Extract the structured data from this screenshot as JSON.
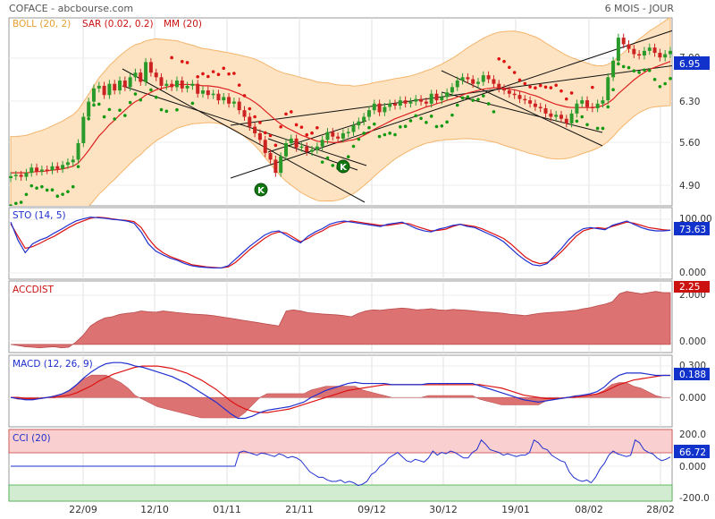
{
  "header": {
    "title": "COFACE - abcbourse.com",
    "period": "6 MOIS - JOUR"
  },
  "colors": {
    "up": "#2a9a2a",
    "down": "#cc2222",
    "boll_fill": "#fde3c2",
    "boll_line": "#f4b46a",
    "ma": "#dd2222",
    "sar_up": "#119911",
    "sar_down": "#dd1111",
    "blue": "#1f2fcf",
    "red": "#dd1111",
    "accdist_fill": "#dc7272",
    "cci_top": "#f9cfcf",
    "cci_bottom": "#d2ecd2",
    "badge_blue": "#1133cc",
    "badge_red": "#cc1111"
  },
  "dates": [
    "22/09",
    "12/10",
    "01/11",
    "21/11",
    "09/12",
    "30/12",
    "19/01",
    "08/02",
    "28/02"
  ],
  "chart_data": [
    {
      "type": "candlestick",
      "name": "price",
      "legend": [
        {
          "label": "BOLL (20, 2)",
          "color": "#e8a030"
        },
        {
          "label": "SAR (0.02, 0.2)",
          "color": "#cc1111"
        },
        {
          "label": "MM (20)",
          "color": "#cc1111"
        }
      ],
      "yticks": [
        "7.00",
        "6.30",
        "5.60",
        "4.90"
      ],
      "ylim": [
        4.6,
        7.45
      ],
      "last_value": "6.95",
      "markers": [
        "K",
        "K"
      ],
      "close": [
        5.05,
        5.07,
        5.04,
        5.1,
        5.18,
        5.12,
        5.15,
        5.14,
        5.2,
        5.16,
        5.22,
        5.26,
        5.3,
        5.55,
        5.95,
        6.18,
        6.38,
        6.42,
        6.28,
        6.45,
        6.35,
        6.5,
        6.4,
        6.55,
        6.62,
        6.48,
        6.78,
        6.62,
        6.55,
        6.42,
        6.45,
        6.4,
        6.5,
        6.38,
        6.42,
        6.45,
        6.3,
        6.35,
        6.28,
        6.3,
        6.2,
        6.25,
        6.15,
        6.18,
        6.05,
        5.95,
        5.8,
        5.7,
        5.6,
        5.4,
        5.3,
        5.1,
        5.35,
        5.55,
        5.62,
        5.48,
        5.5,
        5.42,
        5.45,
        5.5,
        5.6,
        5.72,
        5.65,
        5.62,
        5.7,
        5.72,
        5.82,
        5.88,
        5.95,
        6.05,
        6.15,
        6.02,
        6.1,
        6.15,
        6.12,
        6.2,
        6.15,
        6.18,
        6.22,
        6.18,
        6.15,
        6.3,
        6.2,
        6.25,
        6.32,
        6.4,
        6.5,
        6.55,
        6.52,
        6.45,
        6.48,
        6.58,
        6.52,
        6.45,
        6.38,
        6.35,
        6.3,
        6.28,
        6.22,
        6.2,
        6.15,
        6.1,
        6.08,
        6.0,
        5.95,
        5.98,
        5.92,
        5.85,
        6.0,
        6.15,
        6.2,
        6.1,
        6.08,
        6.15,
        6.2,
        6.55,
        6.8,
        7.15,
        7.05,
        6.98,
        6.9,
        6.88,
        6.95,
        7.0,
        6.92,
        6.85,
        6.9,
        6.95
      ],
      "ma": [
        5.1,
        5.1,
        5.1,
        5.1,
        5.11,
        5.12,
        5.12,
        5.13,
        5.14,
        5.15,
        5.16,
        5.18,
        5.2,
        5.25,
        5.34,
        5.44,
        5.55,
        5.66,
        5.74,
        5.83,
        5.9,
        5.98,
        6.05,
        6.12,
        6.18,
        6.22,
        6.28,
        6.32,
        6.36,
        6.38,
        6.4,
        6.42,
        6.44,
        6.44,
        6.44,
        6.44,
        6.43,
        6.42,
        6.42,
        6.41,
        6.4,
        6.38,
        6.36,
        6.33,
        6.3,
        6.26,
        6.22,
        6.17,
        6.11,
        6.04,
        5.97,
        5.9,
        5.84,
        5.79,
        5.75,
        5.71,
        5.67,
        5.64,
        5.61,
        5.58,
        5.57,
        5.57,
        5.56,
        5.56,
        5.57,
        5.59,
        5.6,
        5.63,
        5.67,
        5.71,
        5.76,
        5.8,
        5.84,
        5.88,
        5.92,
        5.95,
        5.98,
        6.01,
        6.04,
        6.07,
        6.1,
        6.12,
        6.15,
        6.17,
        6.2,
        6.22,
        6.25,
        6.28,
        6.31,
        6.33,
        6.35,
        6.37,
        6.38,
        6.39,
        6.39,
        6.38,
        6.37,
        6.36,
        6.34,
        6.32,
        6.29,
        6.27,
        6.24,
        6.2,
        6.17,
        6.14,
        6.12,
        6.1,
        6.09,
        6.09,
        6.09,
        6.09,
        6.09,
        6.1,
        6.12,
        6.16,
        6.22,
        6.3,
        6.37,
        6.44,
        6.51,
        6.57,
        6.62,
        6.67,
        6.7,
        6.73,
        6.76,
        6.79
      ]
    },
    {
      "type": "line",
      "name": "STO (14, 5)",
      "yticks": [
        "100.00",
        "0.000"
      ],
      "ylim": [
        -10,
        108
      ],
      "last_value": "73.63",
      "series": [
        {
          "color": "#dd1111",
          "values": [
            85,
            62,
            40,
            43,
            49,
            56,
            62,
            70,
            78,
            85,
            90,
            95,
            97,
            96,
            94,
            92,
            91,
            89,
            78,
            58,
            42,
            32,
            25,
            20,
            15,
            10,
            8,
            6,
            5,
            4,
            6,
            14,
            26,
            38,
            48,
            58,
            66,
            70,
            68,
            60,
            52,
            58,
            66,
            72,
            80,
            84,
            88,
            90,
            88,
            86,
            84,
            82,
            82,
            84,
            86,
            85,
            80,
            76,
            72,
            73,
            75,
            80,
            84,
            82,
            80,
            76,
            70,
            64,
            58,
            48,
            36,
            24,
            16,
            12,
            14,
            22,
            34,
            48,
            62,
            72,
            76,
            78,
            76,
            80,
            84,
            88,
            86,
            82,
            78,
            76,
            74,
            73
          ]
        },
        {
          "color": "#1f2fcf",
          "values": [
            88,
            55,
            32,
            48,
            55,
            60,
            68,
            75,
            83,
            90,
            94,
            97,
            96,
            95,
            93,
            92,
            90,
            86,
            70,
            48,
            35,
            28,
            22,
            18,
            12,
            8,
            6,
            5,
            4,
            4,
            8,
            20,
            32,
            44,
            54,
            64,
            70,
            72,
            64,
            56,
            50,
            62,
            70,
            76,
            84,
            88,
            90,
            88,
            86,
            84,
            82,
            80,
            84,
            86,
            88,
            82,
            76,
            72,
            70,
            75,
            78,
            82,
            84,
            80,
            78,
            72,
            66,
            60,
            52,
            40,
            28,
            18,
            10,
            8,
            12,
            26,
            40,
            56,
            68,
            76,
            78,
            76,
            74,
            82,
            86,
            90,
            84,
            78,
            74,
            72,
            72,
            73
          ]
        }
      ]
    },
    {
      "type": "area",
      "name": "ACCDIST",
      "yticks": [
        "2.000",
        "0.000"
      ],
      "ylim": [
        -0.2,
        2.6
      ],
      "last_value": "2.25",
      "values": [
        0.0,
        -0.05,
        -0.1,
        -0.12,
        -0.15,
        -0.12,
        -0.1,
        -0.15,
        -0.12,
        0.1,
        0.4,
        0.8,
        1.0,
        1.15,
        1.2,
        1.3,
        1.35,
        1.38,
        1.45,
        1.42,
        1.4,
        1.45,
        1.42,
        1.38,
        1.35,
        1.32,
        1.3,
        1.28,
        1.25,
        1.2,
        1.15,
        1.1,
        1.05,
        1.0,
        0.95,
        0.9,
        0.85,
        0.8,
        1.45,
        1.5,
        1.45,
        1.38,
        1.35,
        1.32,
        1.3,
        1.28,
        1.25,
        1.2,
        1.35,
        1.45,
        1.5,
        1.48,
        1.52,
        1.55,
        1.58,
        1.55,
        1.5,
        1.52,
        1.55,
        1.5,
        1.48,
        1.52,
        1.5,
        1.48,
        1.45,
        1.42,
        1.4,
        1.38,
        1.35,
        1.3,
        1.28,
        1.25,
        1.3,
        1.35,
        1.38,
        1.4,
        1.42,
        1.45,
        1.48,
        1.55,
        1.6,
        1.68,
        1.75,
        1.85,
        2.2,
        2.3,
        2.25,
        2.2,
        2.25,
        2.3,
        2.25,
        2.25
      ]
    },
    {
      "type": "line",
      "name": "MACD (12, 26, 9)",
      "yticks": [
        "0.300",
        "0.000"
      ],
      "ylim": [
        -0.23,
        0.34
      ],
      "last_value": "0.188",
      "series": [
        {
          "color": "#dd1111",
          "values": [
            0.0,
            0.0,
            -0.01,
            -0.01,
            -0.01,
            0.0,
            0.0,
            0.01,
            0.02,
            0.04,
            0.07,
            0.1,
            0.14,
            0.17,
            0.2,
            0.22,
            0.24,
            0.26,
            0.27,
            0.27,
            0.27,
            0.26,
            0.25,
            0.23,
            0.21,
            0.18,
            0.15,
            0.11,
            0.07,
            0.02,
            -0.03,
            -0.07,
            -0.1,
            -0.12,
            -0.13,
            -0.13,
            -0.12,
            -0.11,
            -0.1,
            -0.08,
            -0.06,
            -0.04,
            -0.02,
            0.0,
            0.02,
            0.04,
            0.06,
            0.07,
            0.08,
            0.09,
            0.1,
            0.11,
            0.11,
            0.11,
            0.11,
            0.11,
            0.11,
            0.11,
            0.11,
            0.11,
            0.11,
            0.11,
            0.11,
            0.11,
            0.11,
            0.1,
            0.09,
            0.08,
            0.06,
            0.04,
            0.02,
            0.01,
            0.0,
            -0.01,
            -0.01,
            -0.01,
            0.0,
            0.0,
            0.01,
            0.02,
            0.03,
            0.05,
            0.08,
            0.11,
            0.13,
            0.15,
            0.16,
            0.17,
            0.18,
            0.19,
            0.19
          ]
        },
        {
          "color": "#1f2fcf",
          "values": [
            0.0,
            -0.01,
            -0.02,
            -0.02,
            -0.01,
            0.0,
            0.01,
            0.03,
            0.06,
            0.11,
            0.17,
            0.22,
            0.26,
            0.29,
            0.3,
            0.3,
            0.29,
            0.27,
            0.26,
            0.24,
            0.22,
            0.2,
            0.18,
            0.15,
            0.12,
            0.08,
            0.04,
            0.0,
            -0.04,
            -0.09,
            -0.14,
            -0.18,
            -0.18,
            -0.16,
            -0.13,
            -0.11,
            -0.1,
            -0.09,
            -0.08,
            -0.06,
            -0.04,
            0.0,
            0.03,
            0.06,
            0.08,
            0.1,
            0.12,
            0.13,
            0.12,
            0.12,
            0.12,
            0.12,
            0.11,
            0.11,
            0.11,
            0.11,
            0.11,
            0.12,
            0.12,
            0.12,
            0.12,
            0.12,
            0.12,
            0.12,
            0.1,
            0.08,
            0.06,
            0.04,
            0.02,
            0.0,
            -0.02,
            -0.03,
            -0.04,
            -0.03,
            -0.02,
            -0.01,
            0.0,
            0.01,
            0.02,
            0.03,
            0.05,
            0.09,
            0.15,
            0.19,
            0.21,
            0.21,
            0.21,
            0.2,
            0.19,
            0.19,
            0.19
          ]
        }
      ]
    },
    {
      "type": "line",
      "name": "CCI (20)",
      "yticks": [
        "200.0",
        "0.000",
        "-200.0"
      ],
      "ylim": [
        -240,
        240
      ],
      "last_value": "66.72",
      "values": [
        0,
        0,
        0,
        0,
        0,
        0,
        0,
        0,
        0,
        0,
        0,
        0,
        0,
        0,
        0,
        0,
        0,
        0,
        0,
        0,
        0,
        0,
        0,
        0,
        0,
        0,
        0,
        0,
        0,
        0,
        0,
        0,
        0,
        0,
        0,
        0,
        0,
        0,
        0,
        0,
        0,
        0,
        0,
        0,
        0,
        0,
        0,
        0,
        0,
        0,
        0,
        0,
        100,
        110,
        100,
        90,
        80,
        95,
        90,
        80,
        70,
        90,
        80,
        60,
        70,
        60,
        40,
        0,
        -40,
        -60,
        -80,
        -80,
        -100,
        -110,
        -110,
        -100,
        -120,
        -110,
        -120,
        -140,
        -130,
        -110,
        -60,
        -40,
        0,
        20,
        60,
        80,
        100,
        70,
        40,
        30,
        50,
        40,
        30,
        60,
        110,
        80,
        100,
        90,
        110,
        100,
        80,
        60,
        60,
        100,
        120,
        190,
        160,
        120,
        110,
        100,
        80,
        90,
        80,
        70,
        80,
        80,
        100,
        190,
        170,
        130,
        120,
        80,
        60,
        40,
        30,
        -40,
        -80,
        -100,
        -110,
        -100,
        -120,
        -80,
        -20,
        20,
        80,
        110,
        90,
        80,
        70,
        80,
        190,
        170,
        120,
        100,
        90,
        60,
        40,
        50,
        67
      ]
    }
  ]
}
